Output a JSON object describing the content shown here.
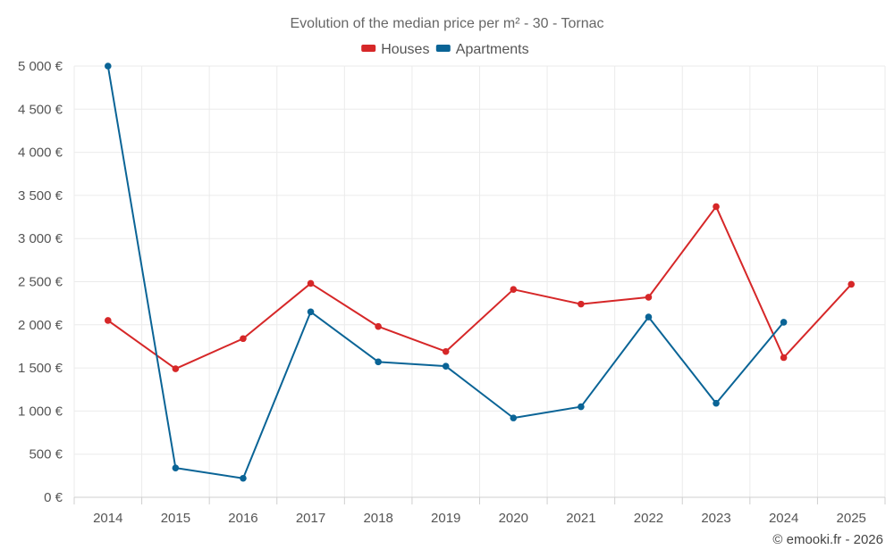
{
  "chart_data": {
    "type": "line",
    "title": "Evolution of the median price per m² - 30 - Tornac",
    "categories": [
      "2014",
      "2015",
      "2016",
      "2017",
      "2018",
      "2019",
      "2020",
      "2021",
      "2022",
      "2023",
      "2024",
      "2025"
    ],
    "y_ticks": [
      0,
      500,
      1000,
      1500,
      2000,
      2500,
      3000,
      3500,
      4000,
      4500,
      5000
    ],
    "y_tick_labels": [
      "0 €",
      "500 €",
      "1 000 €",
      "1 500 €",
      "2 000 €",
      "2 500 €",
      "3 000 €",
      "3 500 €",
      "4 000 €",
      "4 500 €",
      "5 000 €"
    ],
    "ylim": [
      0,
      5000
    ],
    "grid": true,
    "legend_position": "top-center",
    "series": [
      {
        "name": "Houses",
        "color": "#d62728",
        "values": [
          2050,
          1490,
          1840,
          2480,
          1980,
          1690,
          2410,
          2240,
          2320,
          3370,
          1620,
          2470
        ]
      },
      {
        "name": "Apartments",
        "color": "#0a6496",
        "values": [
          5000,
          340,
          220,
          2150,
          1570,
          1520,
          920,
          1050,
          2090,
          1090,
          2030,
          null
        ]
      }
    ],
    "credit": "© emooki.fr - 2026"
  }
}
